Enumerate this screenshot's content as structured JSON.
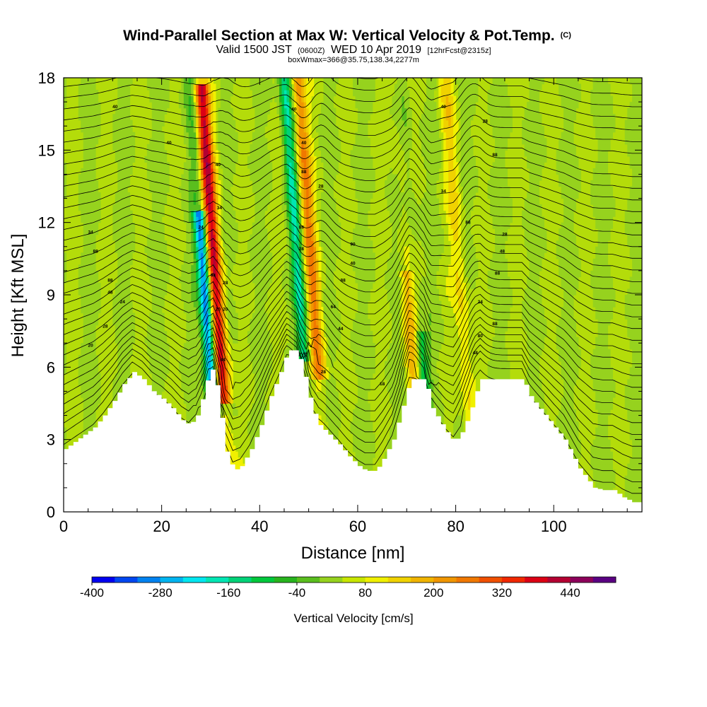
{
  "chart_data": {
    "type": "heatmap",
    "title": "Wind-Parallel Section at Max W: Vertical Velocity & Pot.Temp.",
    "title_mark": "(C)",
    "subtitle": {
      "part1": "Valid 1500 JST",
      "part2": "(0600Z)",
      "part3": "WED 10 Apr 2019",
      "part4": "[12hrFcst@2315z]"
    },
    "subtitle2": "boxWmax=366@35.75,138.34,2277m",
    "xlabel": "Distance [nm]",
    "ylabel": "Height [Kft MSL]",
    "xlim": [
      0,
      118
    ],
    "ylim": [
      0,
      18
    ],
    "x_ticks": [
      0,
      20,
      40,
      60,
      80,
      100
    ],
    "y_ticks": [
      0,
      3,
      6,
      9,
      12,
      15,
      18
    ],
    "colorbar": {
      "label": "Vertical Velocity [cm/s]",
      "range": [
        -400,
        520
      ],
      "step": 40,
      "tick_labels": [
        "-400",
        "-280",
        "-160",
        "-40",
        "80",
        "200",
        "320",
        "440"
      ],
      "colors": [
        "#0000f0",
        "#0046f0",
        "#0082f0",
        "#00b4f0",
        "#00e6f0",
        "#00e6b4",
        "#00d278",
        "#00c83c",
        "#28b41e",
        "#5abe1e",
        "#96d21e",
        "#c8e600",
        "#f0f000",
        "#f0d200",
        "#f0b400",
        "#f09600",
        "#f07800",
        "#f05000",
        "#f02800",
        "#dc0014",
        "#b40032",
        "#8c005a",
        "#5a0082"
      ]
    },
    "terrain_height_kft": [
      [
        0,
        2.6
      ],
      [
        2,
        2.9
      ],
      [
        4,
        3.2
      ],
      [
        6,
        3.5
      ],
      [
        8,
        4.0
      ],
      [
        10,
        4.6
      ],
      [
        12,
        5.3
      ],
      [
        14,
        5.8
      ],
      [
        16,
        5.5
      ],
      [
        18,
        5.0
      ],
      [
        20,
        4.7
      ],
      [
        22,
        4.3
      ],
      [
        24,
        3.8
      ],
      [
        25.5,
        3.6
      ],
      [
        27,
        4.0
      ],
      [
        28.5,
        5.0
      ],
      [
        29.5,
        5.9
      ],
      [
        30.5,
        5.9
      ],
      [
        31.5,
        4.6
      ],
      [
        33,
        2.5
      ],
      [
        34.5,
        1.7
      ],
      [
        36,
        1.9
      ],
      [
        38,
        2.6
      ],
      [
        40,
        3.6
      ],
      [
        42,
        4.8
      ],
      [
        44,
        5.8
      ],
      [
        45.5,
        6.7
      ],
      [
        47.5,
        6.7
      ],
      [
        49,
        5.6
      ],
      [
        50.5,
        4.3
      ],
      [
        52,
        3.6
      ],
      [
        54,
        3.2
      ],
      [
        56,
        2.8
      ],
      [
        58,
        2.3
      ],
      [
        60,
        1.9
      ],
      [
        61.5,
        1.7
      ],
      [
        63.5,
        1.7
      ],
      [
        65,
        2.2
      ],
      [
        67,
        3.0
      ],
      [
        69,
        4.4
      ],
      [
        70.5,
        5.5
      ],
      [
        73.5,
        5.5
      ],
      [
        75,
        4.3
      ],
      [
        76.5,
        3.8
      ],
      [
        78,
        3.3
      ],
      [
        79.5,
        2.9
      ],
      [
        81,
        3.3
      ],
      [
        82.5,
        4.0
      ],
      [
        84,
        5.0
      ],
      [
        85,
        5.5
      ],
      [
        93.5,
        5.5
      ],
      [
        95,
        4.8
      ],
      [
        96.5,
        4.4
      ],
      [
        98.5,
        3.9
      ],
      [
        100,
        3.5
      ],
      [
        102,
        3.0
      ],
      [
        103.5,
        2.4
      ],
      [
        105,
        1.8
      ],
      [
        106.5,
        1.4
      ],
      [
        108,
        1.0
      ],
      [
        110,
        0.9
      ],
      [
        112,
        0.9
      ],
      [
        114,
        0.6
      ],
      [
        116,
        0.4
      ],
      [
        118,
        0.4
      ]
    ],
    "updraft_cores": [
      {
        "x": 32.5,
        "z_bottom": 5.0,
        "z_top": 17.2,
        "max_w_cm_s": 366
      },
      {
        "x": 52.0,
        "z_bottom": 6.0,
        "z_top": 18.0,
        "max_w_cm_s": 200
      },
      {
        "x": 71.5,
        "z_bottom": 5.5,
        "z_top": 9.5,
        "max_w_cm_s": 130
      },
      {
        "x": 83.0,
        "z_bottom": 3.5,
        "z_top": 18.0,
        "max_w_cm_s": 90
      }
    ],
    "downdraft_cores": [
      {
        "x": 30.5,
        "z_bottom": 4.5,
        "z_top": 12.0,
        "min_w_cm_s": -380
      },
      {
        "x": 49.0,
        "z_bottom": 6.8,
        "z_top": 18.0,
        "min_w_cm_s": -200
      },
      {
        "x": 73.5,
        "z_bottom": 5.5,
        "z_top": 7.0,
        "min_w_cm_s": -160
      }
    ],
    "contour_labels": [
      {
        "text": "40",
        "x": 10.5,
        "z": 16.8
      },
      {
        "text": "40",
        "x": 21.5,
        "z": 15.3
      },
      {
        "text": "34",
        "x": 5.5,
        "z": 11.6
      },
      {
        "text": "88",
        "x": 6.5,
        "z": 10.8
      },
      {
        "text": "88",
        "x": 9.5,
        "z": 9.6
      },
      {
        "text": "48",
        "x": 9.5,
        "z": 9.1
      },
      {
        "text": "24",
        "x": 12.0,
        "z": 8.7
      },
      {
        "text": "28",
        "x": 8.5,
        "z": 7.7
      },
      {
        "text": "20",
        "x": 5.5,
        "z": 6.9
      },
      {
        "text": "40",
        "x": 31.5,
        "z": 14.4
      },
      {
        "text": "34",
        "x": 31.8,
        "z": 12.6
      },
      {
        "text": "24",
        "x": 28.0,
        "z": 11.8
      },
      {
        "text": "94",
        "x": 30.5,
        "z": 9.8
      },
      {
        "text": "28",
        "x": 33.0,
        "z": 9.5
      },
      {
        "text": "20",
        "x": 31.5,
        "z": 8.4
      },
      {
        "text": "20",
        "x": 33.0,
        "z": 8.4
      },
      {
        "text": "44",
        "x": 32.5,
        "z": 6.3
      },
      {
        "text": "40",
        "x": 47.0,
        "z": 16.7
      },
      {
        "text": "40",
        "x": 49.0,
        "z": 15.3
      },
      {
        "text": "88",
        "x": 49.0,
        "z": 14.1
      },
      {
        "text": "28",
        "x": 52.5,
        "z": 13.5
      },
      {
        "text": "88",
        "x": 48.5,
        "z": 11.8
      },
      {
        "text": "28",
        "x": 48.5,
        "z": 10.9
      },
      {
        "text": "90",
        "x": 59.0,
        "z": 11.1
      },
      {
        "text": "40",
        "x": 59.0,
        "z": 10.3
      },
      {
        "text": "88",
        "x": 57.0,
        "z": 9.6
      },
      {
        "text": "64",
        "x": 55.0,
        "z": 8.5
      },
      {
        "text": "44",
        "x": 56.5,
        "z": 7.6
      },
      {
        "text": "28",
        "x": 53.0,
        "z": 5.8
      },
      {
        "text": "18",
        "x": 65.0,
        "z": 5.3
      },
      {
        "text": "40",
        "x": 77.5,
        "z": 16.8
      },
      {
        "text": "28",
        "x": 86.0,
        "z": 16.2
      },
      {
        "text": "88",
        "x": 88.0,
        "z": 14.8
      },
      {
        "text": "34",
        "x": 77.5,
        "z": 13.3
      },
      {
        "text": "88",
        "x": 82.5,
        "z": 12.0
      },
      {
        "text": "28",
        "x": 90.0,
        "z": 11.5
      },
      {
        "text": "48",
        "x": 89.5,
        "z": 10.8
      },
      {
        "text": "88",
        "x": 88.5,
        "z": 9.9
      },
      {
        "text": "24",
        "x": 85.0,
        "z": 8.7
      },
      {
        "text": "88",
        "x": 88.0,
        "z": 7.8
      },
      {
        "text": "80",
        "x": 85.0,
        "z": 7.3
      },
      {
        "text": "48",
        "x": 84.0,
        "z": 6.6
      }
    ]
  }
}
